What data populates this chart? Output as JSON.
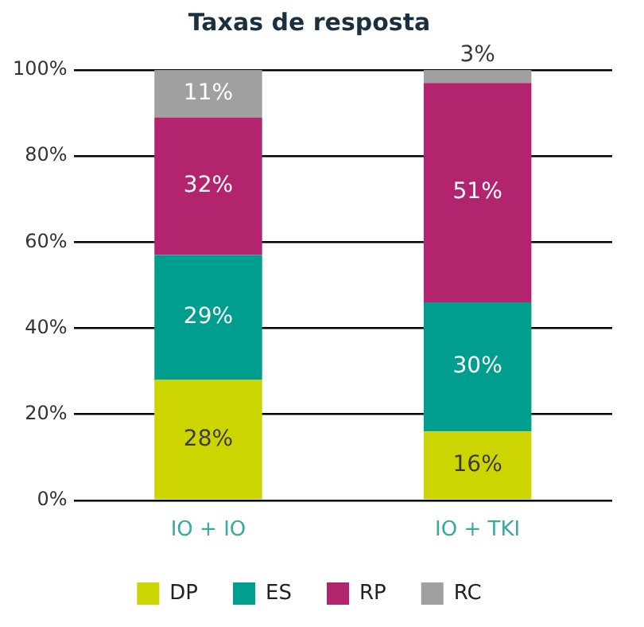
{
  "chart_data": {
    "type": "bar",
    "title": "Taxas de resposta",
    "stacked": true,
    "categories": [
      "IO + IO",
      "IO + TKI"
    ],
    "series": [
      {
        "name": "DP",
        "color": "#cdd500",
        "values": [
          28,
          16
        ],
        "value_labels": [
          "28%",
          "16%"
        ]
      },
      {
        "name": "ES",
        "color": "#009e8f",
        "values": [
          29,
          30
        ],
        "value_labels": [
          "29%",
          "30%"
        ]
      },
      {
        "name": "RP",
        "color": "#b3246f",
        "values": [
          32,
          51
        ],
        "value_labels": [
          "32%",
          "51%"
        ]
      },
      {
        "name": "RC",
        "color": "#a0a0a0",
        "values": [
          11,
          3
        ],
        "value_labels": [
          "11%",
          "3%"
        ]
      }
    ],
    "ylim": [
      0,
      100
    ],
    "yticks": [
      {
        "value": 0,
        "label": "0%"
      },
      {
        "value": 20,
        "label": "20%"
      },
      {
        "value": 40,
        "label": "40%"
      },
      {
        "value": 60,
        "label": "60%"
      },
      {
        "value": 80,
        "label": "80%"
      },
      {
        "value": 100,
        "label": "100%"
      }
    ],
    "grid": "y",
    "legend": "bottom"
  }
}
